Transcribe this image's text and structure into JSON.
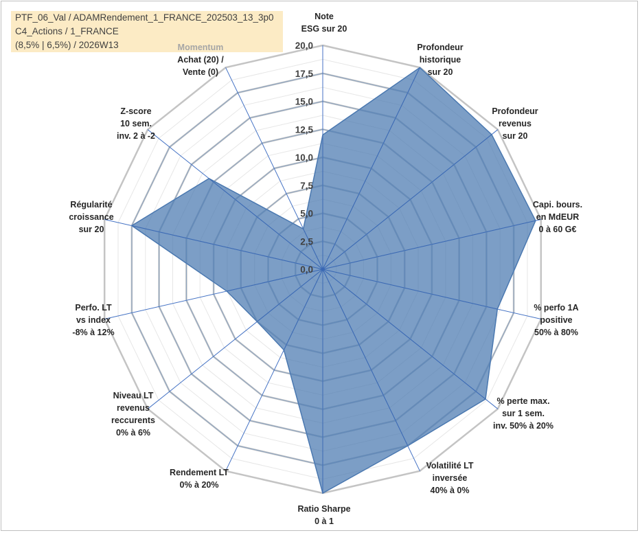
{
  "header": {
    "line1": "PTF_06_Val / ADAMRendement_1_FRANCE_202503_13_3p0",
    "line2": "C4_Actions / 1_FRANCE",
    "line3": "(8,5% | 6,5%) / 2026W13"
  },
  "chart_data": {
    "type": "radar",
    "title": "",
    "rmin": 0,
    "rmax": 20,
    "tick_step": 2.5,
    "tick_labels": [
      "0,0",
      "2,5",
      "5,0",
      "7,5",
      "10,0",
      "12,5",
      "15,0",
      "17,5",
      "20,0"
    ],
    "fill_color": "#4a78b0",
    "axes": [
      {
        "id": "esg",
        "label": [
          "Note",
          "ESG sur 20"
        ],
        "muted_line": -1
      },
      {
        "id": "prof-hist",
        "label": [
          "Profondeur",
          "historique",
          "sur 20"
        ],
        "muted_line": -1
      },
      {
        "id": "prof-rev",
        "label": [
          "Profondeur",
          "revenus",
          "sur 20"
        ],
        "muted_line": -1
      },
      {
        "id": "capi",
        "label": [
          "Capi. bours.",
          "en MdEUR",
          "0 à 60 G€"
        ],
        "muted_line": -1
      },
      {
        "id": "perf-1a",
        "label": [
          "% perfo 1A",
          "positive",
          "50% à 80%"
        ],
        "muted_line": -1
      },
      {
        "id": "perte-max",
        "label": [
          "% perte max.",
          "sur 1 sem.",
          "inv. 50% à 20%"
        ],
        "muted_line": -1
      },
      {
        "id": "volatilite",
        "label": [
          "Volatilité LT",
          "inversée",
          "40% à 0%"
        ],
        "muted_line": -1
      },
      {
        "id": "sharpe",
        "label": [
          "Ratio Sharpe",
          "0 à 1"
        ],
        "muted_line": -1
      },
      {
        "id": "rendement",
        "label": [
          "Rendement LT",
          "0% à 20%"
        ],
        "muted_line": -1
      },
      {
        "id": "niveau-rev",
        "label": [
          "Niveau LT",
          "revenus",
          "reccurents",
          "0% à 6%"
        ],
        "muted_line": -1
      },
      {
        "id": "perf-index",
        "label": [
          "Perfo. LT",
          "vs index",
          "-8% à 12%"
        ],
        "muted_line": -1
      },
      {
        "id": "regularite",
        "label": [
          "Régularité",
          "croissance",
          "sur 20"
        ],
        "muted_line": -1
      },
      {
        "id": "zscore",
        "label": [
          "Z-score",
          "10 sem.",
          "inv. 2 à -2"
        ],
        "muted_line": -1
      },
      {
        "id": "momentum",
        "label": [
          "Momentum",
          "Achat (20) /",
          "Vente (0)"
        ],
        "muted_line": 0
      }
    ],
    "series": [
      {
        "values": [
          12,
          20,
          19.3,
          19.5,
          16,
          18.6,
          17.5,
          20,
          8,
          7.5,
          8.8,
          17.5,
          13,
          4
        ]
      }
    ]
  }
}
